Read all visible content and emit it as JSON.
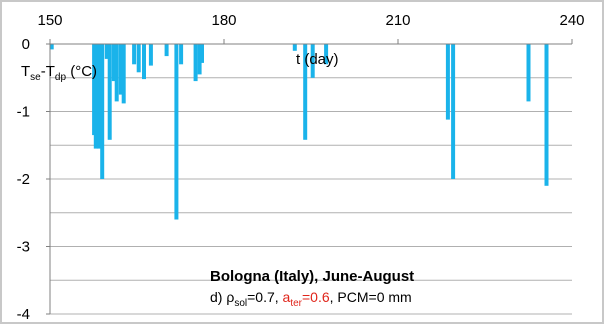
{
  "chart_data": {
    "type": "bar",
    "title": "Bologna (Italy), June-August",
    "subtitle": {
      "prefix": "d) ",
      "rho_symbol": "ρ",
      "rho_sub": "sol",
      "rho_value": "=0.7, ",
      "alpha_symbol": "a",
      "alpha_sub": "ter",
      "alpha_value": "=0.6",
      "suffix": ", PCM=0 mm"
    },
    "xlabel": "t (day)",
    "ylabel": {
      "T1": "T",
      "sub1": "se",
      "dash": "-T",
      "sub2": "dp",
      "unit": " (°C)"
    },
    "xlim": [
      150,
      240
    ],
    "ylim": [
      -4,
      0
    ],
    "x_ticks": [
      "150",
      "180",
      "210",
      "240"
    ],
    "y_ticks": [
      "0",
      "-1",
      "-2",
      "-3",
      "-4"
    ],
    "grid": true,
    "bar_color": "#1ab3ea",
    "series": [
      {
        "x": [
          150.3,
          157.6,
          157.9,
          158.2,
          158.5,
          159.0,
          159.8,
          160.3,
          161.0,
          161.5,
          162.2,
          162.7,
          164.5,
          165.3,
          166.2,
          167.4,
          170.1,
          171.8,
          172.6,
          175.1,
          175.8,
          176.2,
          192.2,
          194.0,
          195.3,
          197.6,
          218.6,
          219.5,
          232.5,
          235.6
        ],
        "y": [
          -0.08,
          -1.35,
          -1.55,
          -1.42,
          -1.55,
          -2.0,
          -0.22,
          -1.42,
          -0.55,
          -0.85,
          -0.75,
          -0.88,
          -0.3,
          -0.42,
          -0.52,
          -0.32,
          -0.18,
          -2.6,
          -0.3,
          -0.55,
          -0.45,
          -0.28,
          -0.1,
          -1.42,
          -0.5,
          -0.3,
          -1.12,
          -2.0,
          -0.85,
          -2.1
        ]
      }
    ]
  }
}
